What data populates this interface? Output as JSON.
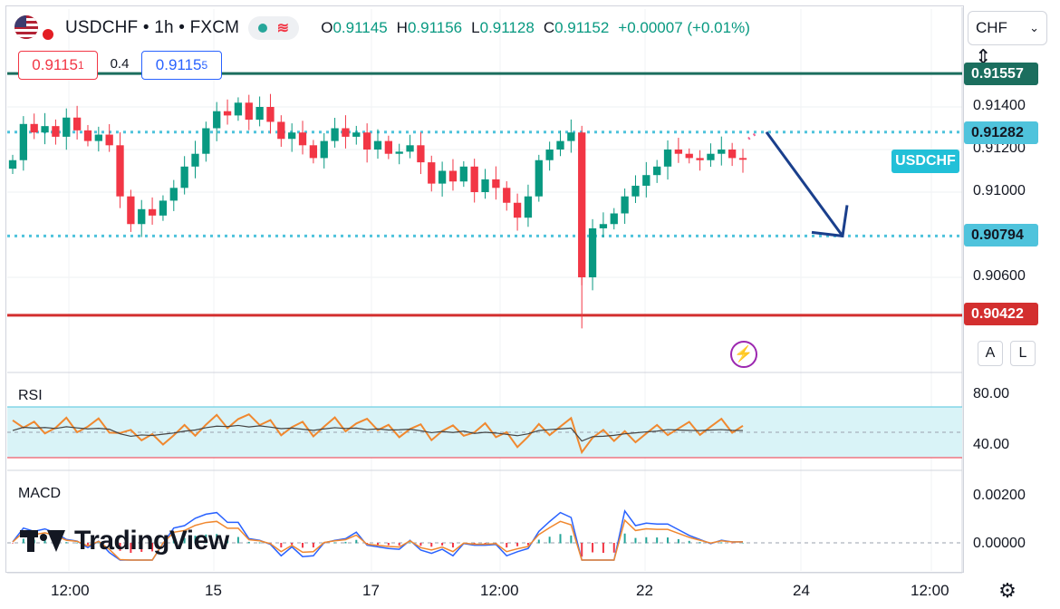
{
  "header": {
    "symbol": "USDCHF",
    "separator1": "•",
    "interval": "1h",
    "separator2": "•",
    "exchange": "FXCM",
    "ohlc": {
      "o_label": "O",
      "o_value": "0.91145",
      "h_label": "H",
      "h_value": "0.91156",
      "l_label": "L",
      "l_value": "0.91128",
      "c_label": "C",
      "c_value": "0.91152",
      "change": "+0.00007 (+0.01%)"
    },
    "status_dot_color": "#26a69a",
    "indicator_icon": "wave-icon"
  },
  "trade": {
    "sell_price": "0.9115",
    "sell_superscript": "1",
    "spread": "0.4",
    "buy_price": "0.9115",
    "buy_superscript": "5"
  },
  "currency_select": {
    "value": "CHF",
    "icon": "chevron-down-icon"
  },
  "price_axis": {
    "ticks": [
      "0.91400",
      "0.91200",
      "0.91000",
      "0.90600"
    ],
    "tags": [
      {
        "value": "0.91557",
        "color": "#1b6e5e"
      },
      {
        "value": "0.91282",
        "color": "#4fc3dc"
      },
      {
        "value": "0.90794",
        "color": "#4fc3dc"
      },
      {
        "value": "0.90422",
        "color": "#d32f2f"
      }
    ],
    "auto_label": "A",
    "log_label": "L"
  },
  "symbol_tag": "USDCHF",
  "rsi": {
    "label": "RSI",
    "ticks": [
      "80.00",
      "40.00"
    ],
    "band_color": "#d9f3f7",
    "line_color": "#f0882f",
    "ma_color": "#444444"
  },
  "macd": {
    "label": "MACD",
    "ticks": [
      "0.00200",
      "0.00000"
    ],
    "macd_color": "#2962ff",
    "signal_color": "#f0882f"
  },
  "time_axis": [
    "12:00",
    "15",
    "17",
    "12:00",
    "22",
    "24",
    "12:00"
  ],
  "brand": {
    "name": "TradingView",
    "icon": "tradingview-logo-icon"
  },
  "colors": {
    "up": "#089981",
    "down": "#f23645",
    "resistance": "#1b6e5e",
    "support": "#d32f2f",
    "dotted": "#4fc3dc",
    "arrow": "#1a3f8c"
  },
  "chart_data": {
    "type": "candlestick",
    "levels": [
      0.91557,
      0.91282,
      0.90794,
      0.90422
    ],
    "y_ticks": [
      0.914,
      0.912,
      0.91,
      0.906
    ],
    "closes": [
      0.9115,
      0.9132,
      0.9128,
      0.9131,
      0.9126,
      0.9135,
      0.9129,
      0.9124,
      0.9127,
      0.9122,
      0.9098,
      0.9085,
      0.9092,
      0.9089,
      0.9096,
      0.9102,
      0.9112,
      0.9118,
      0.913,
      0.9138,
      0.9136,
      0.9142,
      0.9134,
      0.914,
      0.9133,
      0.9125,
      0.9128,
      0.9122,
      0.9116,
      0.9124,
      0.913,
      0.9126,
      0.9128,
      0.912,
      0.9124,
      0.9118,
      0.9119,
      0.9122,
      0.9114,
      0.9104,
      0.911,
      0.9105,
      0.9112,
      0.91,
      0.9106,
      0.9102,
      0.9095,
      0.9088,
      0.9098,
      0.9115,
      0.912,
      0.9124,
      0.9128,
      0.906,
      0.9083,
      0.9085,
      0.909,
      0.9098,
      0.9103,
      0.9108,
      0.9112,
      0.912,
      0.9118,
      0.9116,
      0.9115,
      0.9118,
      0.912,
      0.9116,
      0.91152
    ],
    "direction_arrow": {
      "from": 0.91282,
      "to": 0.90794
    }
  }
}
